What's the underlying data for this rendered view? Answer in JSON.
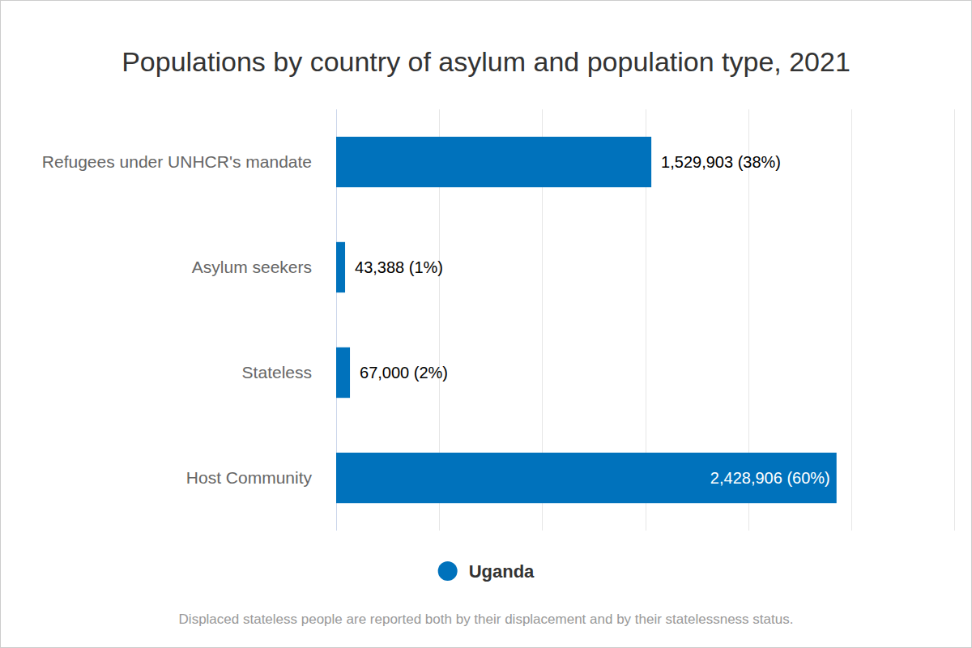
{
  "chart_data": {
    "type": "bar",
    "title": "Populations by country of asylum and population type, 2021",
    "orientation": "horizontal",
    "categories": [
      "Refugees under UNHCR's mandate",
      "Asylum seekers",
      "Stateless",
      "Host Community"
    ],
    "series": [
      {
        "name": "Uganda",
        "color": "#0072bc",
        "values": [
          1529903,
          43388,
          67000,
          2428906
        ],
        "value_labels": [
          "1,529,903 (38%)",
          "43,388 (1%)",
          "67,000 (2%)",
          "2,428,906 (60%)"
        ]
      }
    ],
    "xlim": [
      0,
      3000000
    ],
    "xticks": [
      0,
      500000,
      1000000,
      1500000,
      2000000,
      2500000,
      3000000
    ],
    "grid": true,
    "tick_labels": false,
    "data_labels": true,
    "legend": "bottom",
    "caption": "Displaced stateless people are reported both by their displacement and by their statelessness status."
  }
}
